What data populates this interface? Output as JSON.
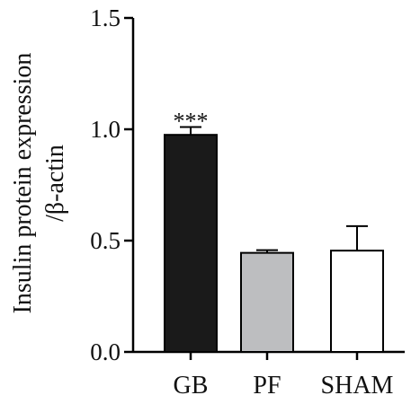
{
  "chart_data": {
    "type": "bar",
    "categories": [
      "GB",
      "PF",
      "SHAM"
    ],
    "values": [
      0.975,
      0.445,
      0.455
    ],
    "error_upper": [
      0.035,
      0.012,
      0.11
    ],
    "ylabel_line1": "Insulin protein expression",
    "ylabel_line2": "/β-actin",
    "ylim": [
      0,
      1.5
    ],
    "yticks": [
      0.0,
      0.5,
      1.0,
      1.5
    ],
    "ytick_labels": [
      "0.0",
      "0.5",
      "1.0",
      "1.5"
    ],
    "annotations": [
      {
        "category": "GB",
        "text": "***"
      }
    ],
    "bar_colors": [
      "#1a1a1a",
      "#bdbec0",
      "#ffffff"
    ],
    "bar_stroke": "#000000",
    "grid": false
  }
}
